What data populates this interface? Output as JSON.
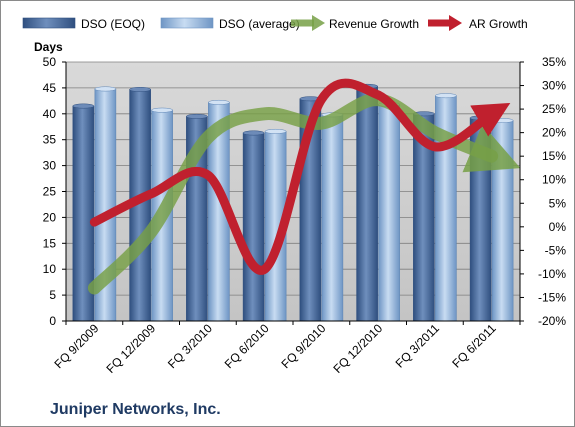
{
  "chart_data": {
    "type": "bar",
    "categories": [
      "FQ 9/2009",
      "FQ 12/2009",
      "FQ 3/2010",
      "FQ 6/2010",
      "FQ 9/2010",
      "FQ 12/2010",
      "FQ 3/2011",
      "FQ 6/2011"
    ],
    "series": [
      {
        "name": "DSO (EOQ)",
        "kind": "bar",
        "axis": "left",
        "color": "#4a6b9a",
        "values": [
          41.5,
          44.7,
          39.5,
          36.3,
          42.9,
          45.3,
          40.0,
          39.2
        ]
      },
      {
        "name": "DSO (average)",
        "kind": "bar",
        "axis": "left",
        "color": "#8fb1d9",
        "values": [
          44.8,
          40.7,
          42.2,
          36.6,
          39.8,
          41.8,
          43.5,
          38.7
        ]
      },
      {
        "name": "Revenue Growth",
        "kind": "line",
        "axis": "right",
        "color": "#77a046",
        "values": [
          -13,
          -1,
          19,
          24,
          22,
          27,
          20,
          15
        ]
      },
      {
        "name": "AR Growth",
        "kind": "line",
        "axis": "right",
        "color": "#c0202e",
        "values": [
          1,
          7,
          11,
          -9,
          27,
          28,
          17,
          24
        ]
      }
    ],
    "left_axis": {
      "title": "Days",
      "range": [
        0,
        50
      ],
      "ticks": [
        "0",
        "5",
        "10",
        "15",
        "20",
        "25",
        "30",
        "35",
        "40",
        "45",
        "50"
      ]
    },
    "right_axis": {
      "range": [
        -20,
        35
      ],
      "ticks": [
        "-20%",
        "-15%",
        "-10%",
        "-5%",
        "0%",
        "5%",
        "10%",
        "15%",
        "20%",
        "25%",
        "30%",
        "35%"
      ]
    },
    "grid": true,
    "legend": "top",
    "company": "Juniper Networks, Inc."
  }
}
